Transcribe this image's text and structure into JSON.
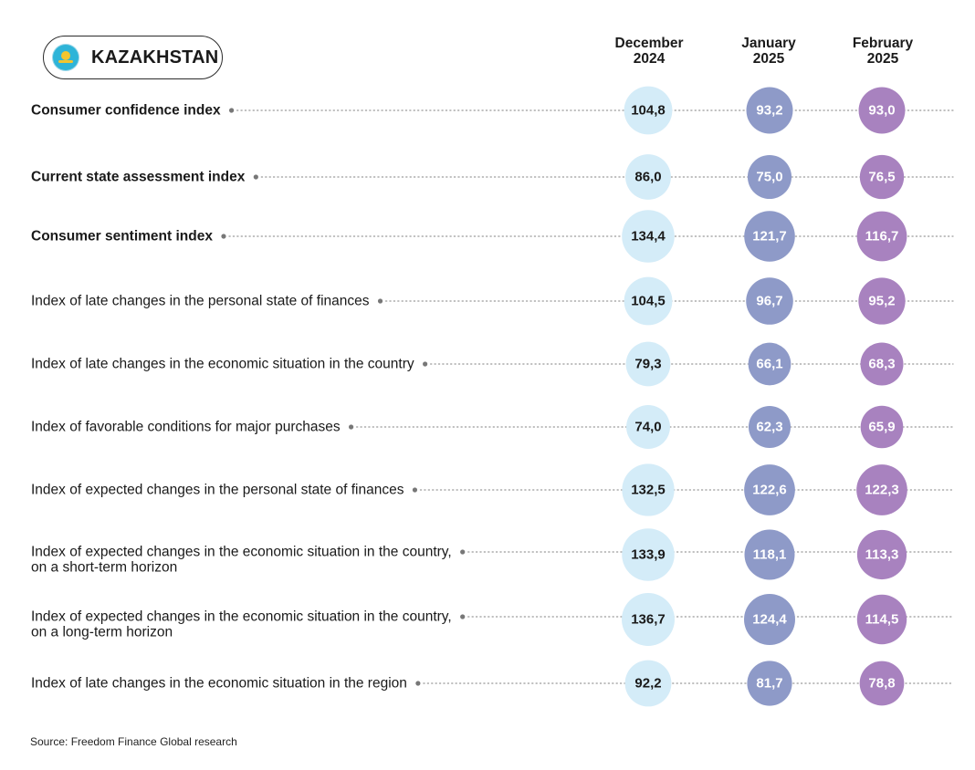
{
  "header": {
    "title": "KAZAKHSTAN",
    "flag_icon": "kazakhstan-flag-icon"
  },
  "columns": [
    {
      "line1": "December",
      "line2": "2024",
      "color": "#d4ecf8",
      "text_color": "#1a1a1a"
    },
    {
      "line1": "January",
      "line2": "2025",
      "color": "#8e9ac8",
      "text_color": "#ffffff"
    },
    {
      "line1": "February",
      "line2": "2025",
      "color": "#a882bf",
      "text_color": "#ffffff"
    }
  ],
  "footer": {
    "source": "Source: Freedom Finance Global research"
  },
  "chart_data": {
    "type": "table",
    "categories": [
      "December 2024",
      "January 2025",
      "February 2025"
    ],
    "rows": [
      {
        "label": [
          "Consumer confidence index"
        ],
        "bold": true,
        "values": [
          104.8,
          93.2,
          93.0
        ],
        "display": [
          "104,8",
          "93,2",
          "93,0"
        ]
      },
      {
        "label": [
          "Current state assessment index"
        ],
        "bold": true,
        "values": [
          86.0,
          75.0,
          76.5
        ],
        "display": [
          "86,0",
          "75,0",
          "76,5"
        ]
      },
      {
        "label": [
          "Consumer sentiment index"
        ],
        "bold": true,
        "values": [
          134.4,
          121.7,
          116.7
        ],
        "display": [
          "134,4",
          "121,7",
          "116,7"
        ]
      },
      {
        "label": [
          "Index of late changes in the personal state of finances"
        ],
        "bold": false,
        "values": [
          104.5,
          96.7,
          95.2
        ],
        "display": [
          "104,5",
          "96,7",
          "95,2"
        ]
      },
      {
        "label": [
          "Index of late changes in the economic situation in the country"
        ],
        "bold": false,
        "values": [
          79.3,
          66.1,
          68.3
        ],
        "display": [
          "79,3",
          "66,1",
          "68,3"
        ]
      },
      {
        "label": [
          "Index of favorable conditions for major purchases"
        ],
        "bold": false,
        "values": [
          74.0,
          62.3,
          65.9
        ],
        "display": [
          "74,0",
          "62,3",
          "65,9"
        ]
      },
      {
        "label": [
          "Index of expected changes in the personal state of finances"
        ],
        "bold": false,
        "values": [
          132.5,
          122.6,
          122.3
        ],
        "display": [
          "132,5",
          "122,6",
          "122,3"
        ]
      },
      {
        "label": [
          "Index of expected changes in the economic situation in the country,",
          "on a short-term horizon"
        ],
        "bold": false,
        "values": [
          133.9,
          118.1,
          113.3
        ],
        "display": [
          "133,9",
          "118,1",
          "113,3"
        ]
      },
      {
        "label": [
          "Index of expected changes in the economic situation in the country,",
          "on a long-term horizon"
        ],
        "bold": false,
        "values": [
          136.7,
          124.4,
          114.5
        ],
        "display": [
          "136,7",
          "124,4",
          "114,5"
        ]
      },
      {
        "label": [
          "Index of late changes in the economic situation in the region"
        ],
        "bold": false,
        "values": [
          92.2,
          81.7,
          78.8
        ],
        "display": [
          "92,2",
          "81,7",
          "78,8"
        ]
      }
    ]
  }
}
